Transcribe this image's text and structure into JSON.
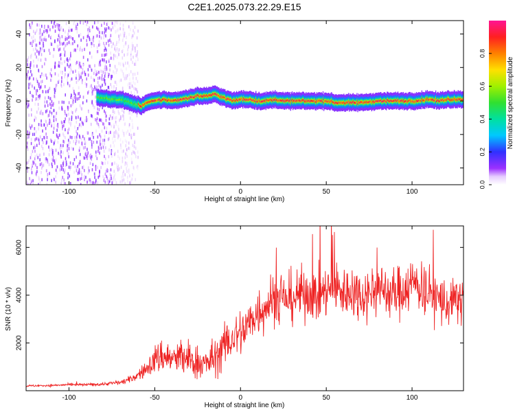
{
  "figure": {
    "title": "C2E1.2025.073.22.29.E15"
  },
  "chart_data": [
    {
      "type": "heatmap",
      "xlabel": "Height of straight line (km)",
      "ylabel": "Frequency (Hz)",
      "xlim": [
        -125,
        130
      ],
      "ylim": [
        -50,
        48
      ],
      "xticks": [
        -100,
        -50,
        0,
        50,
        100
      ],
      "yticks": [
        -40,
        -20,
        0,
        20,
        40
      ],
      "colorbar": {
        "label": "Normalized spectral amplitude",
        "ticks": [
          0.0,
          0.2,
          0.4,
          0.6,
          0.8
        ],
        "tick_labels": [
          "0.0",
          "0.2",
          "0.4",
          "0.6",
          "0.8"
        ],
        "range": [
          0,
          1
        ],
        "colormap": "rainbow (white-violet-blue-cyan-green-yellow-red-magenta)"
      },
      "ridge": {
        "description": "narrow high-amplitude ridge near 0 Hz",
        "x": [
          -84,
          -75,
          -70,
          -65,
          -58,
          -55,
          -50,
          -45,
          -40,
          -35,
          -30,
          -25,
          -20,
          -15,
          -10,
          -5,
          0,
          5,
          10,
          15,
          20,
          25,
          30,
          40,
          50,
          55,
          60,
          70,
          80,
          90,
          100,
          110,
          115,
          120,
          130
        ],
        "frequency": [
          2,
          1,
          1,
          -1,
          -3,
          -1,
          0,
          1,
          0,
          1,
          2,
          3,
          3,
          4,
          2,
          0,
          1,
          1,
          0,
          0,
          1,
          0,
          0,
          0,
          0,
          -1,
          -1,
          -1,
          0,
          0,
          0,
          1,
          0,
          1,
          1
        ]
      },
      "noise_region": {
        "x_from": -125,
        "x_to": -60
      }
    },
    {
      "type": "line",
      "xlabel": "Height of straight line (km)",
      "ylabel": "SNR (10 * v/v)",
      "xlim": [
        -125,
        130
      ],
      "ylim": [
        0,
        6900
      ],
      "xticks": [
        -100,
        -50,
        0,
        50,
        100
      ],
      "yticks": [
        2000,
        4000,
        6000
      ],
      "series": [
        {
          "color": "#ee2222",
          "x": [
            -125,
            -110,
            -100,
            -90,
            -80,
            -70,
            -65,
            -60,
            -55,
            -50,
            -45,
            -40,
            -35,
            -30,
            -25,
            -20,
            -15,
            -10,
            -5,
            0,
            5,
            10,
            15,
            20,
            25,
            30,
            35,
            40,
            45,
            50,
            55,
            60,
            65,
            70,
            75,
            80,
            85,
            90,
            95,
            100,
            105,
            110,
            115,
            120,
            125,
            130
          ],
          "values": [
            200,
            220,
            250,
            250,
            280,
            350,
            450,
            650,
            900,
            1300,
            1500,
            1300,
            1400,
            1300,
            1200,
            1100,
            1400,
            1800,
            2200,
            2400,
            2800,
            3300,
            3600,
            3900,
            3800,
            3900,
            4000,
            4100,
            4000,
            4200,
            4300,
            4100,
            4200,
            4000,
            4100,
            4300,
            4200,
            4000,
            4300,
            4500,
            4400,
            4100,
            3900,
            3600,
            3700,
            3900
          ],
          "variability": [
            40,
            50,
            50,
            60,
            70,
            100,
            150,
            200,
            350,
            600,
            800,
            700,
            800,
            800,
            700,
            700,
            800,
            900,
            1000,
            1000,
            1000,
            1050,
            1100,
            1100,
            1100,
            1100,
            1100,
            1100,
            1100,
            1100,
            1100,
            1100,
            1100,
            1100,
            1100,
            1100,
            1100,
            1100,
            1150,
            1150,
            1150,
            1100,
            1100,
            1050,
            1000,
            1000
          ]
        }
      ]
    }
  ]
}
